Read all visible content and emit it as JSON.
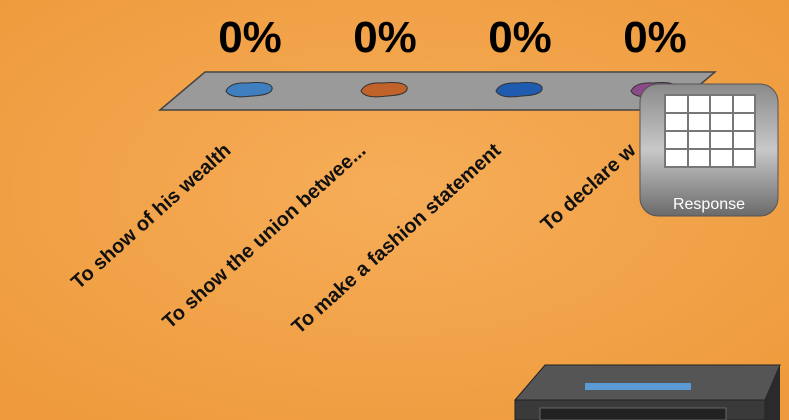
{
  "chart_data": {
    "type": "bar",
    "categories": [
      "To show of his wealth",
      "To show the union betwee...",
      "To make a fashion statement",
      "To declare w"
    ],
    "values": [
      0,
      0,
      0,
      0
    ],
    "value_labels": [
      "0%",
      "0%",
      "0%",
      "0%"
    ],
    "colors": [
      "#3f7fc0",
      "#c0622a",
      "#1f5cb0",
      "#8a4a88"
    ]
  },
  "response_button": {
    "label": "Response"
  }
}
